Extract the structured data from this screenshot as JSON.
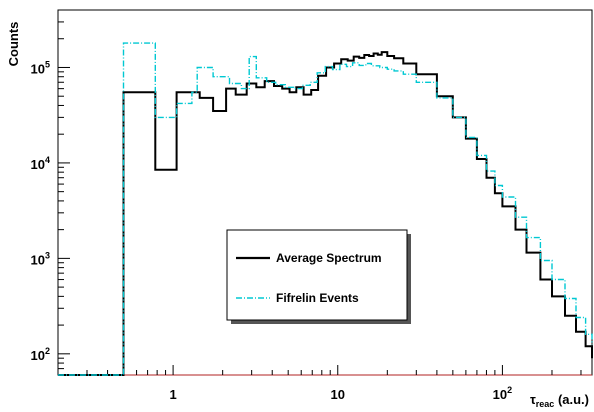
{
  "chart_data": {
    "type": "line",
    "title": "",
    "ylabel": "Counts",
    "xlabel": {
      "symbol": "τ",
      "subscript": "reac",
      "units": "(a.u.)"
    },
    "x_scale": "log",
    "y_scale": "log",
    "xlim": [
      0.2,
      350
    ],
    "ylim": [
      60,
      400000
    ],
    "x_tick_labels": [
      {
        "value": 1,
        "text": "1"
      },
      {
        "value": 10,
        "text": "10"
      },
      {
        "value": 100,
        "base": "10",
        "exp": "2"
      }
    ],
    "y_tick_labels": [
      {
        "value": 100,
        "base": "10",
        "exp": "2"
      },
      {
        "value": 1000,
        "base": "10",
        "exp": "3"
      },
      {
        "value": 10000,
        "base": "10",
        "exp": "4"
      },
      {
        "value": 100000,
        "base": "10",
        "exp": "5"
      }
    ],
    "grid": false,
    "legend_position": "lower-center",
    "series": [
      {
        "name": "Average Spectrum",
        "color": "#000000",
        "style": "solid",
        "step": true,
        "points": [
          [
            0.2,
            0
          ],
          [
            0.5,
            55000
          ],
          [
            0.78,
            8500
          ],
          [
            1.05,
            55000
          ],
          [
            1.45,
            48000
          ],
          [
            1.75,
            35000
          ],
          [
            2.1,
            60000
          ],
          [
            2.4,
            52000
          ],
          [
            2.8,
            68000
          ],
          [
            3.2,
            62000
          ],
          [
            3.6,
            72000
          ],
          [
            4.1,
            64000
          ],
          [
            4.6,
            60000
          ],
          [
            5.1,
            55000
          ],
          [
            5.6,
            62000
          ],
          [
            6.2,
            52000
          ],
          [
            6.9,
            58000
          ],
          [
            7.6,
            82000
          ],
          [
            8.5,
            100000
          ],
          [
            9.5,
            110000
          ],
          [
            10.5,
            122000
          ],
          [
            11.5,
            118000
          ],
          [
            12.5,
            130000
          ],
          [
            13.5,
            126000
          ],
          [
            14.5,
            135000
          ],
          [
            15.5,
            132000
          ],
          [
            16.5,
            140000
          ],
          [
            17.5,
            136000
          ],
          [
            18.5,
            145000
          ],
          [
            20,
            132000
          ],
          [
            22,
            125000
          ],
          [
            25,
            110000
          ],
          [
            30,
            85000
          ],
          [
            40,
            50000
          ],
          [
            50,
            30000
          ],
          [
            60,
            18000
          ],
          [
            70,
            11000
          ],
          [
            80,
            7000
          ],
          [
            90,
            4800
          ],
          [
            100,
            3500
          ],
          [
            120,
            2000
          ],
          [
            140,
            1150
          ],
          [
            170,
            600
          ],
          [
            200,
            400
          ],
          [
            240,
            250
          ],
          [
            280,
            170
          ],
          [
            320,
            120
          ],
          [
            350,
            90
          ]
        ]
      },
      {
        "name": "Fifrelin Events",
        "color": "#00c8d2",
        "style": "dash-dot",
        "step": true,
        "points": [
          [
            0.2,
            0
          ],
          [
            0.5,
            180000
          ],
          [
            0.78,
            30000
          ],
          [
            1.05,
            42000
          ],
          [
            1.3,
            55000
          ],
          [
            1.4,
            100000
          ],
          [
            1.75,
            80000
          ],
          [
            2.2,
            68000
          ],
          [
            2.6,
            60000
          ],
          [
            2.9,
            130000
          ],
          [
            3.2,
            78000
          ],
          [
            3.7,
            70000
          ],
          [
            4.2,
            66000
          ],
          [
            4.8,
            62000
          ],
          [
            5.4,
            60000
          ],
          [
            6.1,
            65000
          ],
          [
            6.8,
            70000
          ],
          [
            7.5,
            88000
          ],
          [
            8.4,
            102000
          ],
          [
            9.3,
            95000
          ],
          [
            10.3,
            108000
          ],
          [
            11.3,
            102000
          ],
          [
            12.3,
            112000
          ],
          [
            13.5,
            105000
          ],
          [
            14.8,
            110000
          ],
          [
            16,
            104000
          ],
          [
            18,
            100000
          ],
          [
            20,
            96000
          ],
          [
            22,
            92000
          ],
          [
            25,
            85000
          ],
          [
            30,
            70000
          ],
          [
            40,
            48000
          ],
          [
            50,
            30000
          ],
          [
            60,
            18500
          ],
          [
            70,
            12000
          ],
          [
            80,
            8200
          ],
          [
            90,
            5800
          ],
          [
            100,
            4400
          ],
          [
            120,
            2700
          ],
          [
            140,
            1650
          ],
          [
            170,
            950
          ],
          [
            200,
            600
          ],
          [
            240,
            380
          ],
          [
            280,
            240
          ],
          [
            320,
            160
          ],
          [
            350,
            125
          ]
        ]
      }
    ]
  }
}
